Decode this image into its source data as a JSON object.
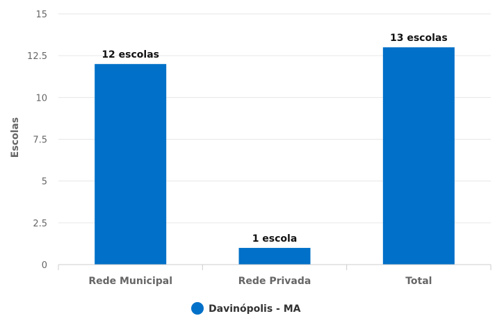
{
  "chart_data": {
    "type": "bar",
    "categories": [
      "Rede Municipal",
      "Rede Privada",
      "Total"
    ],
    "series": [
      {
        "name": "Davinópolis - MA",
        "values": [
          12,
          1,
          13
        ],
        "color": "#0070C8"
      }
    ],
    "data_labels": [
      "12 escolas",
      "1 escola",
      "13 escolas"
    ],
    "ylabel": "Escolas",
    "xlabel": "",
    "ylim": [
      0,
      15
    ],
    "yticks": [
      "0",
      "2.5",
      "5",
      "7.5",
      "10",
      "12.5",
      "15"
    ],
    "grid": true,
    "legend": "bottom-center"
  }
}
